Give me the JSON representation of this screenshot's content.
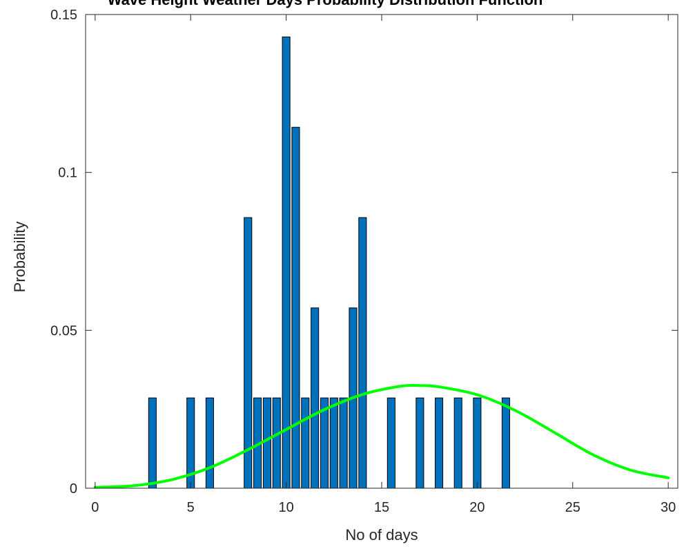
{
  "chart_data": {
    "type": "bar",
    "title": "Wave Height Weather Days Probability Distribution Function",
    "xlabel": "No of days",
    "ylabel": "Probability",
    "xlim": [
      -0.5,
      30.5
    ],
    "ylim": [
      0,
      0.15
    ],
    "xticks": [
      "0",
      "5",
      "10",
      "15",
      "20",
      "25",
      "30"
    ],
    "yticks": [
      "0",
      "0.05",
      "0.1",
      "0.15"
    ],
    "grid": false,
    "colors": {
      "bar": "#0072BD",
      "bar_edge": "#000000",
      "curve": "#00FF00",
      "axis": "#262626"
    },
    "series": [
      {
        "kind": "bar",
        "x": [
          3.0,
          5.0,
          6.0,
          8.0,
          8.5,
          9.0,
          9.5,
          10.0,
          10.5,
          11.0,
          11.5,
          12.0,
          12.5,
          13.0,
          13.5,
          14.0,
          15.5,
          17.0,
          18.0,
          19.0,
          20.0,
          21.5
        ],
        "values": [
          0.0286,
          0.0286,
          0.0286,
          0.0857,
          0.0286,
          0.0286,
          0.0286,
          0.1429,
          0.1143,
          0.0286,
          0.0571,
          0.0286,
          0.0286,
          0.0286,
          0.0571,
          0.0857,
          0.0286,
          0.0286,
          0.0286,
          0.0286,
          0.0286,
          0.0286
        ]
      },
      {
        "kind": "line",
        "x": [
          0,
          2,
          4,
          6,
          8,
          10,
          12,
          14,
          16,
          17,
          18,
          20,
          22,
          24,
          26,
          28,
          30
        ],
        "values": [
          0.0003,
          0.0008,
          0.0027,
          0.0065,
          0.0122,
          0.0186,
          0.0249,
          0.0297,
          0.0323,
          0.0325,
          0.0321,
          0.0296,
          0.0246,
          0.0178,
          0.0108,
          0.0058,
          0.0033
        ]
      }
    ]
  }
}
